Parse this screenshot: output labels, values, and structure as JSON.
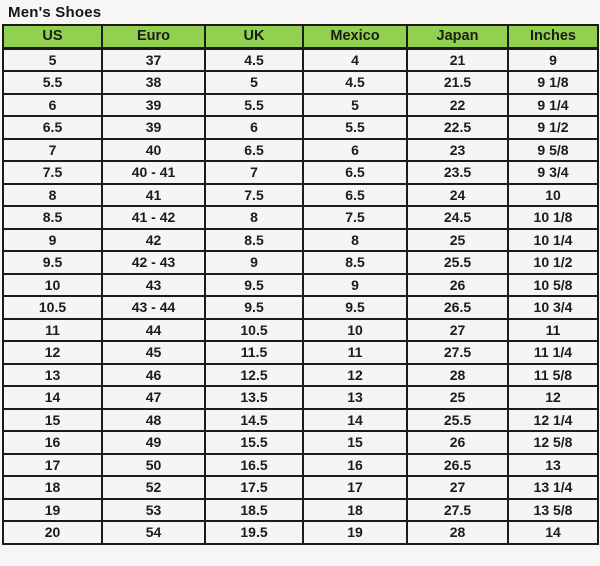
{
  "page": {
    "title": "Men's Shoes"
  },
  "colors": {
    "header_bg": "#92D050",
    "cell_bg": "#F6F5F3",
    "page_bg": "#F7F6F4",
    "border": "#1c1c1c",
    "text": "#1b1b1b"
  },
  "chart_data": {
    "type": "table",
    "title": "Men's Shoes",
    "columns": [
      "US",
      "Euro",
      "UK",
      "Mexico",
      "Japan",
      "Inches"
    ],
    "rows": [
      [
        "5",
        "37",
        "4.5",
        "4",
        "21",
        "9"
      ],
      [
        "5.5",
        "38",
        "5",
        "4.5",
        "21.5",
        "9 1/8"
      ],
      [
        "6",
        "39",
        "5.5",
        "5",
        "22",
        "9 1/4"
      ],
      [
        "6.5",
        "39",
        "6",
        "5.5",
        "22.5",
        "9 1/2"
      ],
      [
        "7",
        "40",
        "6.5",
        "6",
        "23",
        "9 5/8"
      ],
      [
        "7.5",
        "40 - 41",
        "7",
        "6.5",
        "23.5",
        "9 3/4"
      ],
      [
        "8",
        "41",
        "7.5",
        "6.5",
        "24",
        "10"
      ],
      [
        "8.5",
        "41 - 42",
        "8",
        "7.5",
        "24.5",
        "10 1/8"
      ],
      [
        "9",
        "42",
        "8.5",
        "8",
        "25",
        "10 1/4"
      ],
      [
        "9.5",
        "42 - 43",
        "9",
        "8.5",
        "25.5",
        "10 1/2"
      ],
      [
        "10",
        "43",
        "9.5",
        "9",
        "26",
        "10 5/8"
      ],
      [
        "10.5",
        "43 - 44",
        "9.5",
        "9.5",
        "26.5",
        "10 3/4"
      ],
      [
        "11",
        "44",
        "10.5",
        "10",
        "27",
        "11"
      ],
      [
        "12",
        "45",
        "11.5",
        "11",
        "27.5",
        "11 1/4"
      ],
      [
        "13",
        "46",
        "12.5",
        "12",
        "28",
        "11 5/8"
      ],
      [
        "14",
        "47",
        "13.5",
        "13",
        "25",
        "12"
      ],
      [
        "15",
        "48",
        "14.5",
        "14",
        "25.5",
        "12 1/4"
      ],
      [
        "16",
        "49",
        "15.5",
        "15",
        "26",
        "12 5/8"
      ],
      [
        "17",
        "50",
        "16.5",
        "16",
        "26.5",
        "13"
      ],
      [
        "18",
        "52",
        "17.5",
        "17",
        "27",
        "13 1/4"
      ],
      [
        "19",
        "53",
        "18.5",
        "18",
        "27.5",
        "13 5/8"
      ],
      [
        "20",
        "54",
        "19.5",
        "19",
        "28",
        "14"
      ]
    ]
  }
}
